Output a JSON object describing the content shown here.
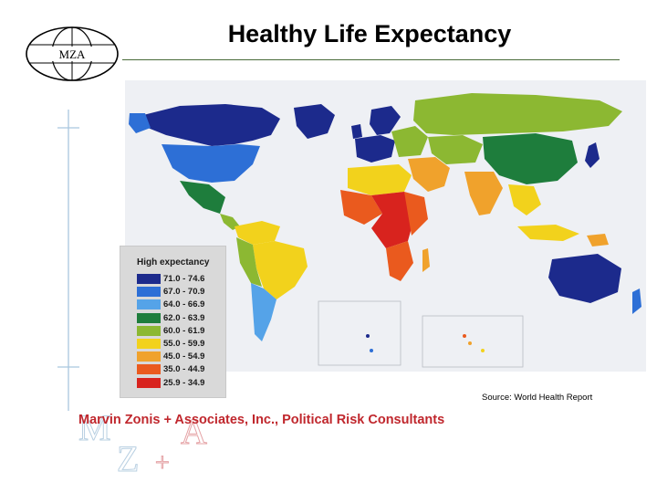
{
  "header": {
    "logo_text": "MZA",
    "title": "Healthy Life Expectancy"
  },
  "legend": {
    "title": "High expectancy",
    "items": [
      {
        "label": "71.0 - 74.6",
        "color": "#1c2a8c"
      },
      {
        "label": "67.0 - 70.9",
        "color": "#2d6fd6"
      },
      {
        "label": "64.0 - 66.9",
        "color": "#55a3e8"
      },
      {
        "label": "62.0 - 63.9",
        "color": "#1e7d3c"
      },
      {
        "label": "60.0 - 61.9",
        "color": "#8cb832"
      },
      {
        "label": "55.0 - 59.9",
        "color": "#f2d21c"
      },
      {
        "label": "45.0 - 54.9",
        "color": "#f0a22c"
      },
      {
        "label": "35.0 - 44.9",
        "color": "#ea5a1e"
      },
      {
        "label": "25.9 - 34.9",
        "color": "#d8231e"
      }
    ]
  },
  "source": "Source: World Health Report",
  "footer": {
    "company": "Marvin Zonis + Associates, Inc., Political Risk Consultants",
    "company_color": "#c0272d"
  }
}
